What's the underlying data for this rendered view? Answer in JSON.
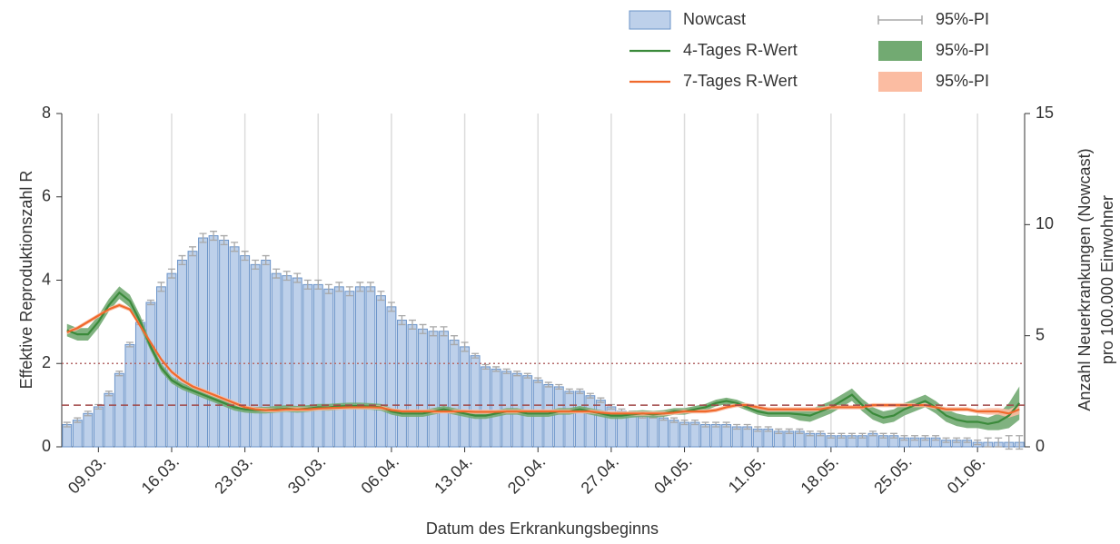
{
  "chart_data": {
    "type": "combo",
    "xlabel": "Datum des Erkrankungsbeginns",
    "ylabel": "Effektive Reproduktionszahl R",
    "y2label": [
      "Anzahl Neuerkrankungen (Nowcast)",
      "pro 100.000 Einwohner"
    ],
    "categories": [
      null,
      null,
      null,
      "09.03.",
      null,
      null,
      null,
      null,
      null,
      null,
      "16.03.",
      null,
      null,
      null,
      null,
      null,
      null,
      "23.03.",
      null,
      null,
      null,
      null,
      null,
      null,
      "30.03.",
      null,
      null,
      null,
      null,
      null,
      null,
      "06.04.",
      null,
      null,
      null,
      null,
      null,
      null,
      "13.04.",
      null,
      null,
      null,
      null,
      null,
      null,
      "20.04.",
      null,
      null,
      null,
      null,
      null,
      null,
      "27.04.",
      null,
      null,
      null,
      null,
      null,
      null,
      "04.05.",
      null,
      null,
      null,
      null,
      null,
      null,
      "11.05.",
      null,
      null,
      null,
      null,
      null,
      null,
      "18.05.",
      null,
      null,
      null,
      null,
      null,
      null,
      "25.05.",
      null,
      null,
      null,
      null,
      null,
      null,
      "01.06.",
      null,
      null,
      null,
      null
    ],
    "ylim": [
      0,
      8
    ],
    "yticks": [
      0,
      2,
      4,
      6,
      8
    ],
    "y2lim": [
      0,
      15
    ],
    "y2ticks": [
      0,
      5,
      10,
      15
    ],
    "xgrid": true,
    "hlines": [
      {
        "value": 2,
        "color": "#b46a6a",
        "style": "dotted"
      },
      {
        "value": 1,
        "color": "#a04848",
        "style": "dashed"
      }
    ],
    "series": [
      {
        "name": "Nowcast",
        "type": "bar",
        "axis": "y2",
        "color": "#bdd0ea",
        "edge_color": "#6a93c8",
        "interval_name": "95%-PI",
        "interval_color": "#a8a8a8",
        "values": [
          1.0,
          1.2,
          1.5,
          1.8,
          2.4,
          3.3,
          4.6,
          5.6,
          6.5,
          7.2,
          7.8,
          8.4,
          8.8,
          9.4,
          9.5,
          9.3,
          9.0,
          8.6,
          8.2,
          8.4,
          7.8,
          7.7,
          7.6,
          7.3,
          7.3,
          7.1,
          7.2,
          7.0,
          7.2,
          7.2,
          6.8,
          6.3,
          5.7,
          5.5,
          5.3,
          5.2,
          5.2,
          4.8,
          4.5,
          4.1,
          3.6,
          3.5,
          3.4,
          3.3,
          3.2,
          3.0,
          2.8,
          2.7,
          2.5,
          2.5,
          2.3,
          2.1,
          1.8,
          1.6,
          1.5,
          1.4,
          1.4,
          1.3,
          1.2,
          1.1,
          1.1,
          1.0,
          1.0,
          1.0,
          0.9,
          0.9,
          0.8,
          0.8,
          0.7,
          0.7,
          0.7,
          0.6,
          0.6,
          0.5,
          0.5,
          0.5,
          0.5,
          0.6,
          0.5,
          0.5,
          0.4,
          0.4,
          0.4,
          0.4,
          0.3,
          0.3,
          0.3,
          0.2,
          0.2,
          0.2,
          0.2,
          0.2
        ],
        "error": [
          0.1,
          0.1,
          0.1,
          0.1,
          0.1,
          0.1,
          0.1,
          0.1,
          0.1,
          0.2,
          0.2,
          0.2,
          0.2,
          0.2,
          0.2,
          0.2,
          0.2,
          0.2,
          0.2,
          0.2,
          0.2,
          0.2,
          0.2,
          0.2,
          0.2,
          0.2,
          0.2,
          0.2,
          0.2,
          0.2,
          0.2,
          0.2,
          0.2,
          0.2,
          0.2,
          0.2,
          0.2,
          0.2,
          0.2,
          0.1,
          0.1,
          0.1,
          0.1,
          0.1,
          0.1,
          0.1,
          0.1,
          0.1,
          0.1,
          0.1,
          0.1,
          0.1,
          0.1,
          0.1,
          0.1,
          0.1,
          0.1,
          0.1,
          0.1,
          0.1,
          0.1,
          0.1,
          0.1,
          0.1,
          0.1,
          0.1,
          0.1,
          0.1,
          0.1,
          0.1,
          0.1,
          0.1,
          0.1,
          0.1,
          0.1,
          0.1,
          0.1,
          0.1,
          0.1,
          0.1,
          0.1,
          0.1,
          0.1,
          0.1,
          0.1,
          0.1,
          0.1,
          0.1,
          0.2,
          0.2,
          0.3,
          0.3
        ]
      },
      {
        "name": "4-Tages R-Wert",
        "type": "line",
        "axis": "y",
        "color": "#3b8a3b",
        "interval_name": "95%-PI",
        "interval_color": "#72aa72",
        "values": [
          2.8,
          2.7,
          2.7,
          3.0,
          3.4,
          3.7,
          3.5,
          3.0,
          2.4,
          1.9,
          1.6,
          1.45,
          1.35,
          1.25,
          1.15,
          1.05,
          0.95,
          0.9,
          0.88,
          0.88,
          0.9,
          0.92,
          0.9,
          0.92,
          0.95,
          0.95,
          0.97,
          0.98,
          0.98,
          0.97,
          0.95,
          0.85,
          0.8,
          0.8,
          0.8,
          0.85,
          0.9,
          0.85,
          0.8,
          0.75,
          0.75,
          0.8,
          0.85,
          0.85,
          0.8,
          0.8,
          0.8,
          0.85,
          0.85,
          0.9,
          0.85,
          0.8,
          0.75,
          0.75,
          0.78,
          0.8,
          0.78,
          0.8,
          0.85,
          0.85,
          0.9,
          0.95,
          1.05,
          1.1,
          1.05,
          0.95,
          0.85,
          0.8,
          0.8,
          0.8,
          0.78,
          0.75,
          0.85,
          0.95,
          1.1,
          1.25,
          1.0,
          0.8,
          0.7,
          0.75,
          0.9,
          1.0,
          1.1,
          0.95,
          0.75,
          0.65,
          0.6,
          0.6,
          0.55,
          0.6,
          0.75,
          1.05
        ],
        "error": [
          0.15,
          0.15,
          0.15,
          0.15,
          0.15,
          0.15,
          0.15,
          0.15,
          0.1,
          0.1,
          0.08,
          0.08,
          0.08,
          0.08,
          0.08,
          0.08,
          0.08,
          0.08,
          0.08,
          0.08,
          0.08,
          0.08,
          0.08,
          0.08,
          0.08,
          0.08,
          0.08,
          0.08,
          0.08,
          0.08,
          0.08,
          0.08,
          0.08,
          0.08,
          0.08,
          0.08,
          0.08,
          0.08,
          0.08,
          0.08,
          0.08,
          0.08,
          0.08,
          0.08,
          0.08,
          0.08,
          0.08,
          0.08,
          0.08,
          0.08,
          0.08,
          0.08,
          0.08,
          0.08,
          0.08,
          0.08,
          0.08,
          0.08,
          0.08,
          0.08,
          0.08,
          0.08,
          0.08,
          0.08,
          0.08,
          0.08,
          0.08,
          0.08,
          0.08,
          0.08,
          0.15,
          0.15,
          0.15,
          0.15,
          0.15,
          0.15,
          0.15,
          0.15,
          0.15,
          0.15,
          0.15,
          0.15,
          0.15,
          0.15,
          0.15,
          0.15,
          0.15,
          0.15,
          0.15,
          0.2,
          0.3,
          0.4
        ]
      },
      {
        "name": "7-Tages R-Wert",
        "type": "line",
        "axis": "y",
        "color": "#f0692c",
        "interval_name": "95%-PI",
        "interval_color": "#fbbca2",
        "values": [
          2.75,
          2.85,
          3.0,
          3.15,
          3.3,
          3.4,
          3.3,
          2.9,
          2.5,
          2.1,
          1.8,
          1.6,
          1.45,
          1.35,
          1.25,
          1.15,
          1.05,
          0.95,
          0.9,
          0.88,
          0.88,
          0.9,
          0.9,
          0.9,
          0.92,
          0.93,
          0.94,
          0.95,
          0.95,
          0.95,
          0.94,
          0.88,
          0.85,
          0.85,
          0.85,
          0.85,
          0.85,
          0.85,
          0.85,
          0.84,
          0.84,
          0.84,
          0.85,
          0.85,
          0.85,
          0.85,
          0.85,
          0.85,
          0.85,
          0.85,
          0.85,
          0.82,
          0.8,
          0.8,
          0.8,
          0.8,
          0.8,
          0.8,
          0.82,
          0.85,
          0.85,
          0.85,
          0.88,
          0.95,
          1.0,
          1.0,
          0.95,
          0.9,
          0.9,
          0.9,
          0.9,
          0.9,
          0.9,
          0.95,
          0.95,
          0.95,
          0.95,
          1.0,
          1.0,
          1.0,
          1.0,
          1.0,
          1.0,
          0.95,
          0.9,
          0.9,
          0.9,
          0.85,
          0.85,
          0.85,
          0.8,
          0.9
        ],
        "error": [
          0.05,
          0.05,
          0.05,
          0.05,
          0.05,
          0.05,
          0.05,
          0.05,
          0.05,
          0.05,
          0.05,
          0.05,
          0.05,
          0.05,
          0.05,
          0.05,
          0.05,
          0.05,
          0.05,
          0.05,
          0.05,
          0.05,
          0.05,
          0.05,
          0.05,
          0.05,
          0.05,
          0.05,
          0.05,
          0.05,
          0.05,
          0.05,
          0.05,
          0.05,
          0.05,
          0.05,
          0.05,
          0.05,
          0.05,
          0.05,
          0.05,
          0.05,
          0.05,
          0.05,
          0.05,
          0.05,
          0.05,
          0.05,
          0.05,
          0.05,
          0.05,
          0.05,
          0.05,
          0.05,
          0.05,
          0.05,
          0.05,
          0.05,
          0.05,
          0.05,
          0.05,
          0.05,
          0.05,
          0.05,
          0.05,
          0.05,
          0.05,
          0.05,
          0.05,
          0.05,
          0.05,
          0.05,
          0.05,
          0.05,
          0.05,
          0.05,
          0.05,
          0.05,
          0.05,
          0.05,
          0.05,
          0.05,
          0.05,
          0.05,
          0.05,
          0.05,
          0.05,
          0.05,
          0.08,
          0.08,
          0.1,
          0.12
        ]
      }
    ]
  }
}
